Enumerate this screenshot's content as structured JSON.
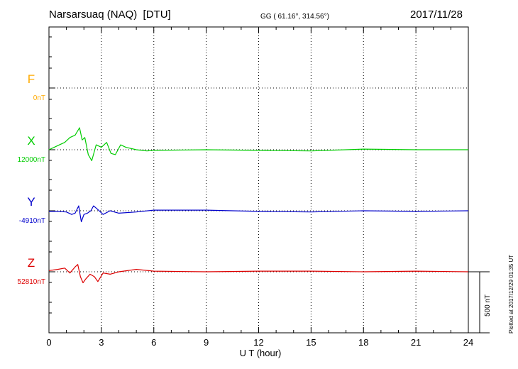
{
  "header": {
    "station": "Narsarsuaq (NAQ)  [DTU]",
    "coords": "GG ( 61.16°, 314.56°)",
    "date": "2017/11/28"
  },
  "footer": {
    "plotted": "Plotted at 2017/12/29 01:35 UT"
  },
  "colors": {
    "F": "#ffaa00",
    "X": "#00cc00",
    "Y": "#0000cc",
    "Z": "#dd0000"
  },
  "chart_data": {
    "type": "line",
    "xlabel": "U T (hour)",
    "xlim": [
      0,
      24
    ],
    "xticks": [
      "0",
      "3",
      "6",
      "9",
      "12",
      "15",
      "18",
      "21",
      "24"
    ],
    "grid": true,
    "scale_bar": {
      "label": "500 nT",
      "value_nT": 500
    },
    "series": [
      {
        "name": "F",
        "baseline_label": "0nT",
        "baseline_nT": 0,
        "points": []
      },
      {
        "name": "X",
        "baseline_label": "12000nT",
        "baseline_nT": 12000,
        "points": [
          [
            0,
            0
          ],
          [
            0.3,
            20
          ],
          [
            0.6,
            40
          ],
          [
            0.9,
            60
          ],
          [
            1.2,
            100
          ],
          [
            1.5,
            120
          ],
          [
            1.75,
            180
          ],
          [
            1.9,
            80
          ],
          [
            2.05,
            100
          ],
          [
            2.25,
            -40
          ],
          [
            2.45,
            -90
          ],
          [
            2.7,
            40
          ],
          [
            3.0,
            20
          ],
          [
            3.3,
            60
          ],
          [
            3.55,
            -30
          ],
          [
            3.8,
            -40
          ],
          [
            4.1,
            40
          ],
          [
            4.4,
            20
          ],
          [
            5.0,
            0
          ],
          [
            5.6,
            -10
          ],
          [
            6.0,
            -5
          ],
          [
            9.0,
            0
          ],
          [
            12.0,
            -5
          ],
          [
            15.0,
            -10
          ],
          [
            18.0,
            5
          ],
          [
            21.0,
            0
          ],
          [
            24.0,
            0
          ]
        ]
      },
      {
        "name": "Y",
        "baseline_label": "-4910nT",
        "baseline_nT": -4910,
        "points": [
          [
            0,
            -5
          ],
          [
            0.5,
            -5
          ],
          [
            1.0,
            -10
          ],
          [
            1.3,
            -30
          ],
          [
            1.5,
            -20
          ],
          [
            1.7,
            40
          ],
          [
            1.85,
            -90
          ],
          [
            2.0,
            -30
          ],
          [
            2.2,
            -20
          ],
          [
            2.4,
            0
          ],
          [
            2.55,
            40
          ],
          [
            2.8,
            10
          ],
          [
            3.1,
            -30
          ],
          [
            3.5,
            0
          ],
          [
            4.0,
            -20
          ],
          [
            5.0,
            -10
          ],
          [
            6.0,
            5
          ],
          [
            9.0,
            5
          ],
          [
            12.0,
            -5
          ],
          [
            15.0,
            -10
          ],
          [
            18.0,
            0
          ],
          [
            21.0,
            -5
          ],
          [
            24.0,
            0
          ]
        ]
      },
      {
        "name": "Z",
        "baseline_label": "52810nT",
        "baseline_nT": 52810,
        "points": [
          [
            0,
            10
          ],
          [
            0.5,
            20
          ],
          [
            0.9,
            30
          ],
          [
            1.2,
            -10
          ],
          [
            1.5,
            40
          ],
          [
            1.65,
            60
          ],
          [
            1.8,
            -40
          ],
          [
            1.95,
            -90
          ],
          [
            2.1,
            -60
          ],
          [
            2.35,
            -20
          ],
          [
            2.6,
            -40
          ],
          [
            2.8,
            -80
          ],
          [
            3.1,
            -10
          ],
          [
            3.5,
            -20
          ],
          [
            4.0,
            0
          ],
          [
            5.0,
            20
          ],
          [
            6.0,
            5
          ],
          [
            9.0,
            0
          ],
          [
            12.0,
            5
          ],
          [
            15.0,
            5
          ],
          [
            18.0,
            0
          ],
          [
            21.0,
            5
          ],
          [
            24.0,
            0
          ]
        ]
      }
    ]
  }
}
